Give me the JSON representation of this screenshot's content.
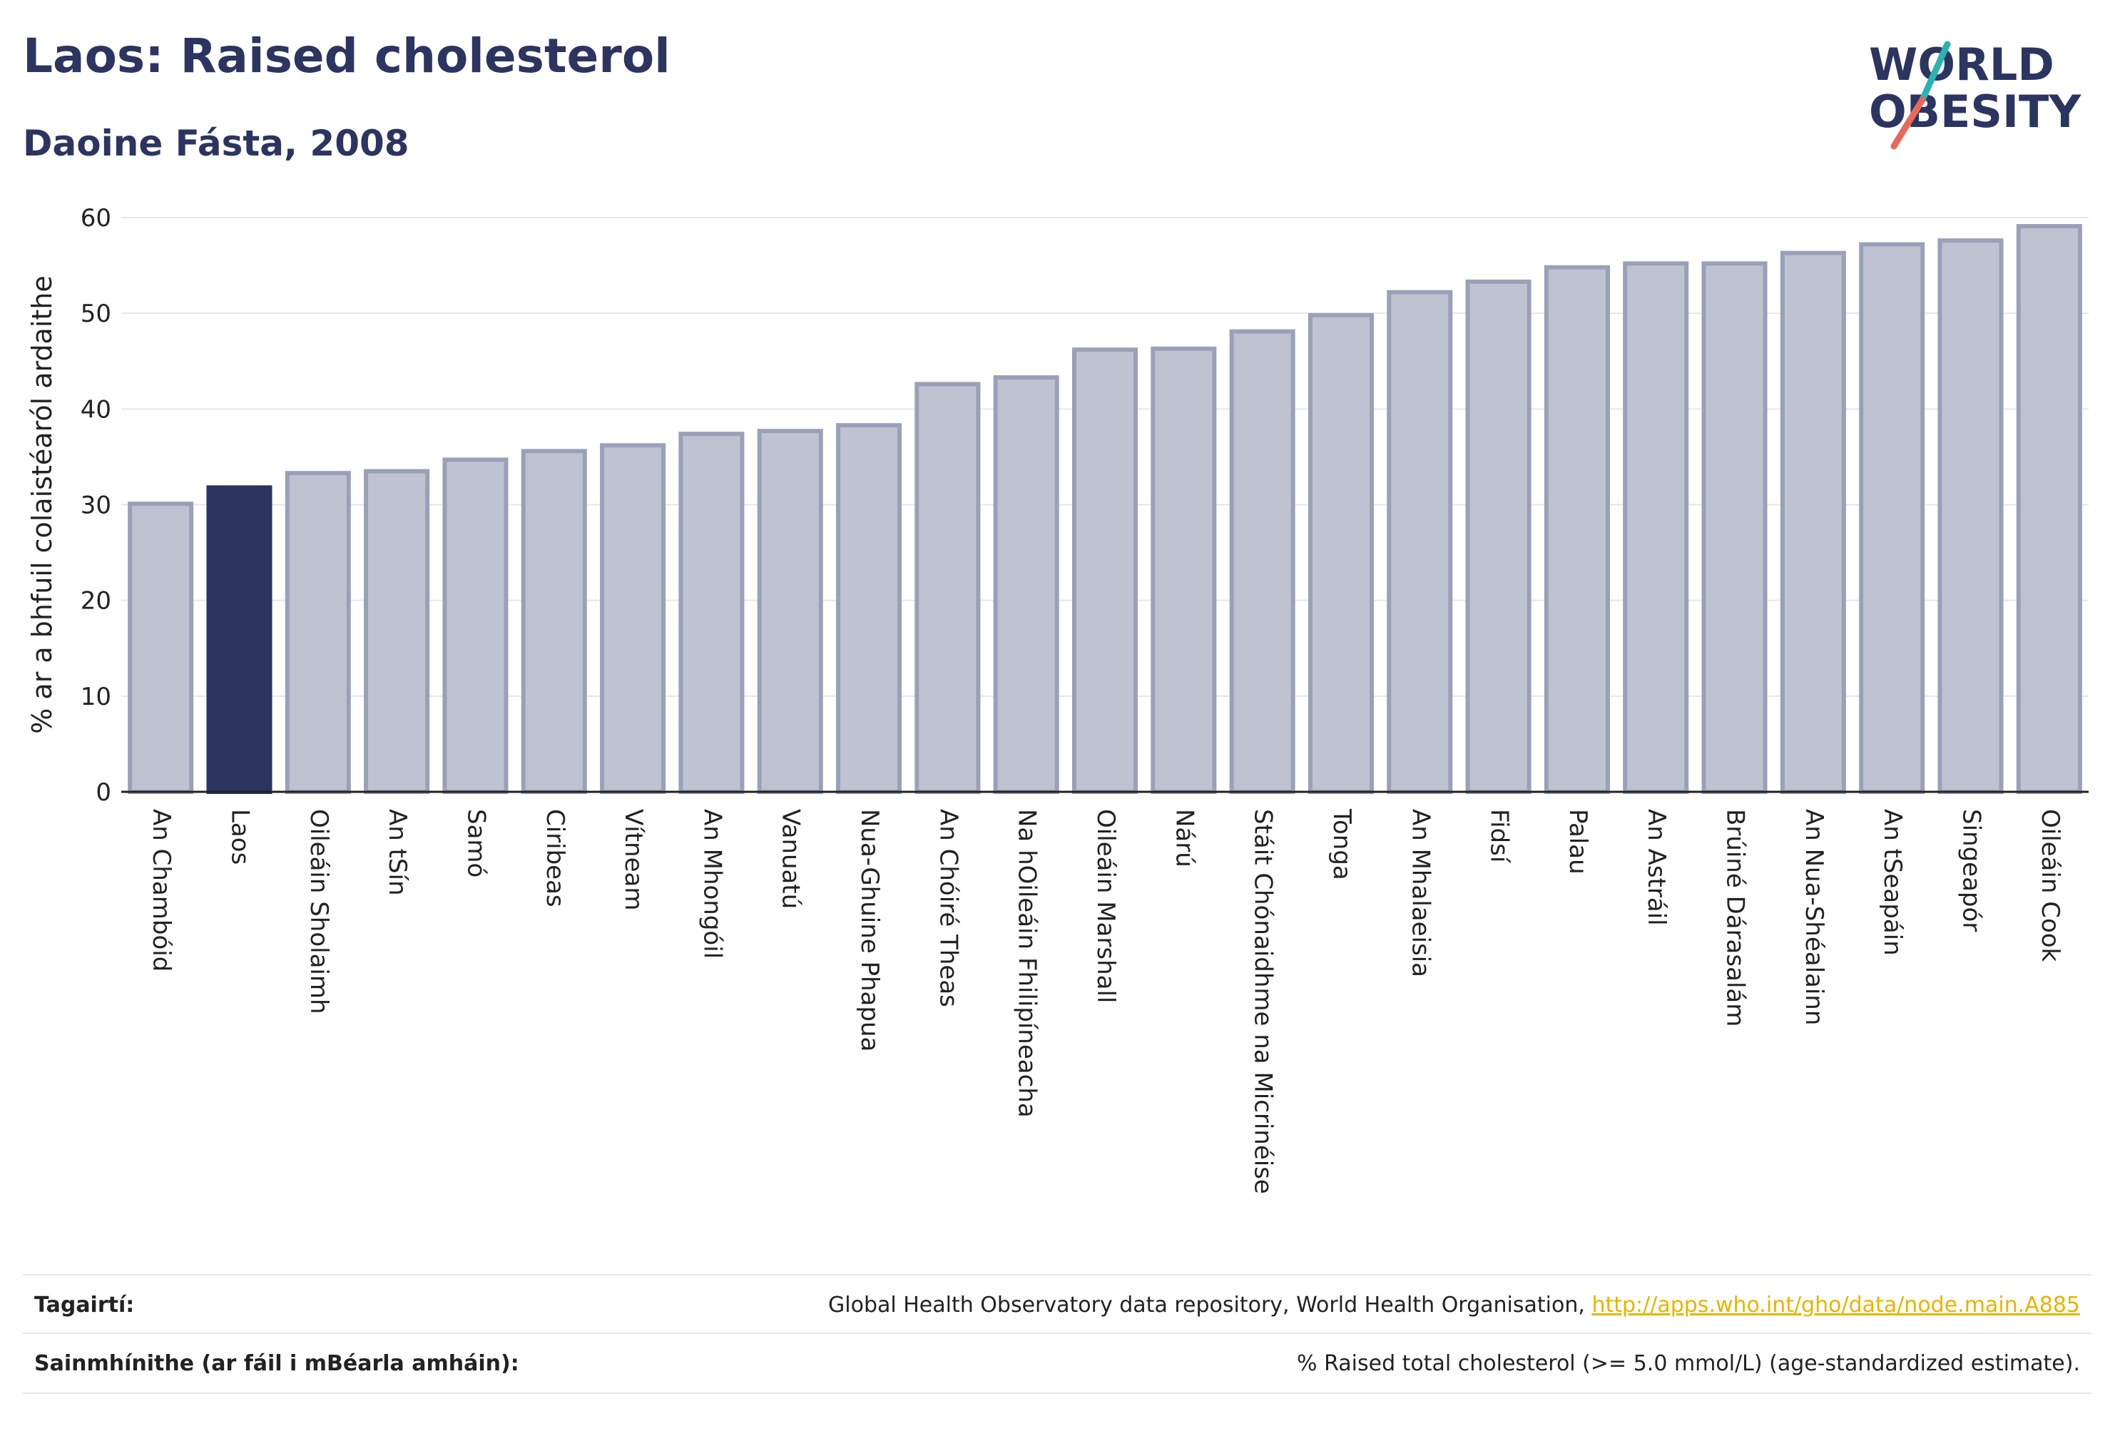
{
  "header": {
    "title": "Laos: Raised cholesterol",
    "subtitle": "Daoine Fásta, 2008"
  },
  "logo": {
    "line1": "WORLD",
    "line2": "OBESITY",
    "colors": {
      "text": "#2b3560",
      "slash_teal": "#2bb3b1",
      "slash_coral": "#e8685a"
    }
  },
  "colors": {
    "highlight_bar": "#2b3560",
    "other_bar_fill": "#bfc3d1",
    "other_bar_stroke": "#9aa0b8",
    "axis": "#222222",
    "grid": "#e6e6ee",
    "link": "#e8b400"
  },
  "chart_data": {
    "type": "bar",
    "title": "Laos: Raised cholesterol",
    "subtitle": "Daoine Fásta, 2008",
    "xlabel": "",
    "ylabel": "% ar a bhfuil colaistéaról ardaithe",
    "ylim": [
      0,
      60
    ],
    "yticks": [
      0,
      10,
      20,
      30,
      40,
      50,
      60
    ],
    "grid": true,
    "highlight": "Laos",
    "categories": [
      "An Chambóid",
      "Laos",
      "Oileáin Sholaimh",
      "An tSín",
      "Samó",
      "Ciribeas",
      "Vítneam",
      "An Mhongóil",
      "Vanuatú",
      "Nua-Ghuine Phapua",
      "An Chóiré Theas",
      "Na hOileáin Fhilipíneacha",
      "Oileáin Marshall",
      "Nárú",
      "Stáit Chónaidhme na Micrinéise",
      "Tonga",
      "An Mhalaeisia",
      "Fidsí",
      "Palau",
      "An Astráil",
      "Brúiné Dárasalám",
      "An Nua-Shéalainn",
      "An tSeapáin",
      "Singeapór",
      "Oileáin Cook"
    ],
    "values": [
      30.1,
      31.8,
      33.3,
      33.5,
      34.7,
      35.6,
      36.2,
      37.4,
      37.7,
      38.3,
      42.6,
      43.3,
      46.2,
      46.3,
      48.1,
      49.8,
      52.2,
      53.3,
      54.8,
      55.2,
      55.2,
      56.3,
      57.2,
      57.6,
      59.1
    ]
  },
  "footer": {
    "references_label": "Tagairtí:",
    "references_text": "Global Health Observatory data repository, World Health Organisation, ",
    "references_link": "http://apps.who.int/gho/data/node.main.A885",
    "definitions_label": "Sainmhínithe (ar fáil i mBéarla amháin):",
    "definitions_text": "% Raised total cholesterol (>= 5.0 mmol/L) (age-standardized estimate)."
  }
}
